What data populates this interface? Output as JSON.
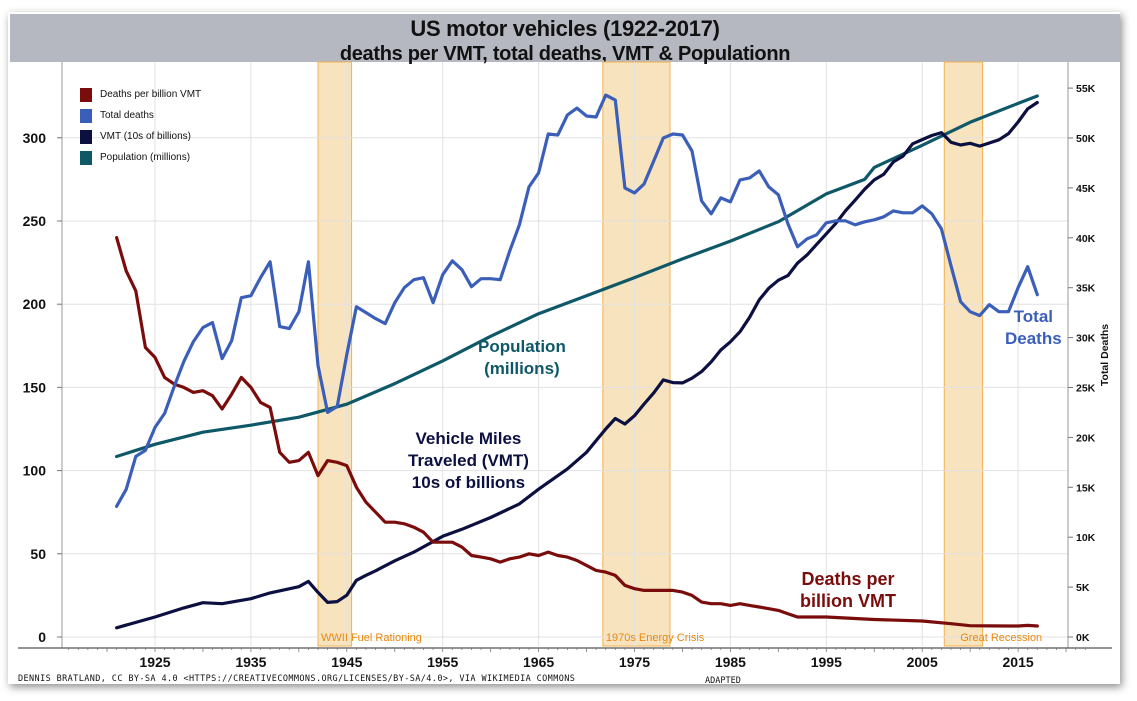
{
  "title": "US motor vehicles (1922-2017)",
  "subtitle": "deaths per VMT, total deaths, VMT & Populationn",
  "credit": "DENNIS BRATLAND, CC BY-SA 4.0 <HTTPS://CREATIVECOMMONS.ORG/LICENSES/BY-SA/4.0>, VIA WIKIMEDIA COMMONS",
  "adapted": "ADAPTED",
  "legend": [
    {
      "label": "Deaths per billion VMT",
      "color": "#7a0c0c"
    },
    {
      "label": "Total deaths",
      "color": "#3b5fb9"
    },
    {
      "label": "VMT (10s of billions)",
      "color": "#0c1040"
    },
    {
      "label": "Population (millions)",
      "color": "#0e5868"
    }
  ],
  "annotations": {
    "population": [
      "Population",
      "(millions)"
    ],
    "vmt": [
      "Vehicle Miles",
      "Traveled (VMT)",
      "10s of billions"
    ],
    "deaths_rate": [
      "Deaths per",
      "billion VMT"
    ],
    "total_deaths": [
      "Total",
      "Deaths"
    ]
  },
  "chart_data": {
    "type": "line",
    "title": "US motor vehicles (1922-2017)",
    "subtitle": "deaths per VMT, total deaths, VMT & Populationn",
    "x_ticks": [
      "1925",
      "1935",
      "1945",
      "1955",
      "1965",
      "1975",
      "1985",
      "1995",
      "2005",
      "2015"
    ],
    "xlim": [
      1915,
      2023
    ],
    "left_axis": {
      "ticks": [
        "0",
        "50",
        "100",
        "150",
        "200",
        "250",
        "300"
      ],
      "ylim": [
        0,
        330
      ]
    },
    "right_axis": {
      "label": "Total Deaths",
      "ticks": [
        "0K",
        "5K",
        "10K",
        "15K",
        "20K",
        "25K",
        "30K",
        "35K",
        "40K",
        "45K",
        "50K",
        "55K"
      ],
      "ylim": [
        0,
        55000
      ]
    },
    "grid": true,
    "legend_position": "top-left",
    "shaded_periods": [
      {
        "label": "WWII Fuel Rationing",
        "start": 1942,
        "end": 1945.5
      },
      {
        "label": "1970s Energy Crisis",
        "start": 1971.7,
        "end": 1978.7
      },
      {
        "label": "Great Recession",
        "start": 2007.3,
        "end": 2011.3
      }
    ],
    "series": [
      {
        "name": "Deaths per billion VMT",
        "axis": "left",
        "color": "#7a0c0c",
        "x": [
          1921,
          1922,
          1923,
          1924,
          1925,
          1926,
          1927,
          1928,
          1929,
          1930,
          1931,
          1932,
          1933,
          1934,
          1935,
          1936,
          1937,
          1938,
          1939,
          1940,
          1941,
          1942,
          1943,
          1944,
          1945,
          1946,
          1947,
          1948,
          1949,
          1950,
          1951,
          1952,
          1953,
          1954,
          1955,
          1956,
          1957,
          1958,
          1959,
          1960,
          1961,
          1962,
          1963,
          1964,
          1965,
          1966,
          1967,
          1968,
          1969,
          1970,
          1971,
          1972,
          1973,
          1974,
          1975,
          1976,
          1977,
          1978,
          1979,
          1980,
          1981,
          1982,
          1983,
          1984,
          1985,
          1986,
          1987,
          1988,
          1989,
          1990,
          1991,
          1992,
          1995,
          2000,
          2005,
          2008,
          2010,
          2012,
          2014,
          2015,
          2016,
          2017
        ],
        "y": [
          240,
          220,
          208,
          174,
          168,
          156,
          152,
          150,
          147,
          148,
          145,
          137,
          146,
          156,
          150,
          141,
          138,
          111,
          105,
          106,
          111,
          97,
          106,
          105,
          103,
          90,
          81,
          75,
          69,
          69,
          68,
          66,
          63,
          57,
          57,
          57,
          54,
          49,
          48,
          47,
          45,
          47,
          48,
          50,
          49,
          51,
          49,
          48,
          46,
          43,
          40,
          39,
          37,
          31,
          29,
          28,
          28,
          28,
          28,
          27,
          25,
          21,
          20,
          20,
          19,
          20,
          19,
          18,
          17,
          16,
          14,
          12,
          12,
          10.5,
          9.6,
          8,
          6.8,
          6.7,
          6.6,
          6.6,
          7,
          6.6
        ]
      },
      {
        "name": "Total deaths",
        "axis": "right",
        "color": "#3b5fb9",
        "x": [
          1921,
          1922,
          1923,
          1924,
          1925,
          1926,
          1927,
          1928,
          1929,
          1930,
          1931,
          1932,
          1933,
          1934,
          1935,
          1936,
          1937,
          1938,
          1939,
          1940,
          1941,
          1942,
          1943,
          1944,
          1945,
          1946,
          1947,
          1948,
          1949,
          1950,
          1951,
          1952,
          1953,
          1954,
          1955,
          1956,
          1957,
          1958,
          1959,
          1960,
          1961,
          1962,
          1963,
          1964,
          1965,
          1966,
          1967,
          1968,
          1969,
          1970,
          1971,
          1972,
          1973,
          1974,
          1975,
          1976,
          1977,
          1978,
          1979,
          1980,
          1981,
          1982,
          1983,
          1984,
          1985,
          1986,
          1987,
          1988,
          1989,
          1990,
          1991,
          1992,
          1993,
          1994,
          1995,
          1996,
          1997,
          1998,
          1999,
          2000,
          2001,
          2002,
          2003,
          2004,
          2005,
          2006,
          2007,
          2008,
          2009,
          2010,
          2011,
          2012,
          2013,
          2014,
          2015,
          2016,
          2017
        ],
        "y": [
          13100,
          14800,
          18100,
          18700,
          21000,
          22400,
          25100,
          27600,
          29600,
          31000,
          31500,
          27900,
          29700,
          34000,
          34200,
          36000,
          37600,
          31100,
          30900,
          32600,
          37600,
          27200,
          22500,
          23100,
          28300,
          33100,
          32500,
          31900,
          31400,
          33500,
          35000,
          35800,
          36000,
          33500,
          36300,
          37700,
          36800,
          35100,
          35900,
          35900,
          35800,
          38700,
          41300,
          45100,
          46500,
          50400,
          50300,
          52300,
          53000,
          52200,
          52100,
          54300,
          53800,
          45000,
          44500,
          45400,
          47700,
          50000,
          50400,
          50300,
          48700,
          43700,
          42400,
          44000,
          43600,
          45800,
          46000,
          46700,
          45100,
          44300,
          41400,
          39100,
          39900,
          40300,
          41500,
          41700,
          41700,
          41300,
          41600,
          41800,
          42100,
          42700,
          42500,
          42500,
          43200,
          42400,
          40900,
          37200,
          33600,
          32600,
          32200,
          33300,
          32600,
          32600,
          35000,
          37100,
          34300
        ]
      },
      {
        "name": "VMT (10s of billions)",
        "axis": "left",
        "color": "#0c1040",
        "x": [
          1921,
          1925,
          1928,
          1930,
          1932,
          1935,
          1937,
          1940,
          1941,
          1942,
          1943,
          1944,
          1945,
          1946,
          1947,
          1948,
          1950,
          1952,
          1955,
          1957,
          1960,
          1963,
          1965,
          1968,
          1970,
          1972,
          1973,
          1974,
          1975,
          1976,
          1977,
          1978,
          1979,
          1980,
          1981,
          1982,
          1983,
          1984,
          1985,
          1986,
          1987,
          1988,
          1989,
          1990,
          1991,
          1992,
          1993,
          1994,
          1995,
          1996,
          1997,
          1998,
          1999,
          2000,
          2001,
          2002,
          2003,
          2004,
          2005,
          2006,
          2007,
          2008,
          2009,
          2010,
          2011,
          2012,
          2013,
          2014,
          2015,
          2016,
          2017
        ],
        "y": [
          5.5,
          12,
          17.5,
          20.6,
          20,
          23,
          26.5,
          30.2,
          33.4,
          26.8,
          20.8,
          21.3,
          25.1,
          34.1,
          37.1,
          39.8,
          45.8,
          51,
          60.5,
          64.7,
          71.8,
          80,
          88.8,
          101,
          111,
          125,
          131.3,
          128,
          133,
          140,
          146.7,
          154.5,
          152.9,
          152.7,
          155.5,
          159.5,
          165.3,
          172.5,
          177.4,
          183.5,
          192.1,
          202.6,
          209.6,
          214.4,
          217.2,
          224.7,
          229.6,
          236,
          242.3,
          248.6,
          256.1,
          262.5,
          269.1,
          274.7,
          278.1,
          285.5,
          289,
          296.4,
          298.9,
          301.4,
          303.1,
          297.3,
          295.7,
          296.7,
          295,
          296.9,
          298.8,
          302.5,
          309.5,
          317.4,
          321.2
        ]
      },
      {
        "name": "Population (millions)",
        "axis": "left",
        "color": "#0e5868",
        "x": [
          1921,
          1925,
          1930,
          1935,
          1940,
          1945,
          1950,
          1955,
          1960,
          1965,
          1970,
          1975,
          1980,
          1985,
          1990,
          1995,
          1999,
          2000,
          2005,
          2010,
          2015,
          2017
        ],
        "y": [
          108.5,
          115.8,
          123.1,
          127.3,
          132.1,
          139.9,
          152.3,
          165.9,
          180.7,
          194.3,
          205.1,
          216,
          227.2,
          237.9,
          249.6,
          266.3,
          275,
          282.2,
          295.5,
          309.3,
          320.7,
          325.1
        ]
      }
    ]
  }
}
